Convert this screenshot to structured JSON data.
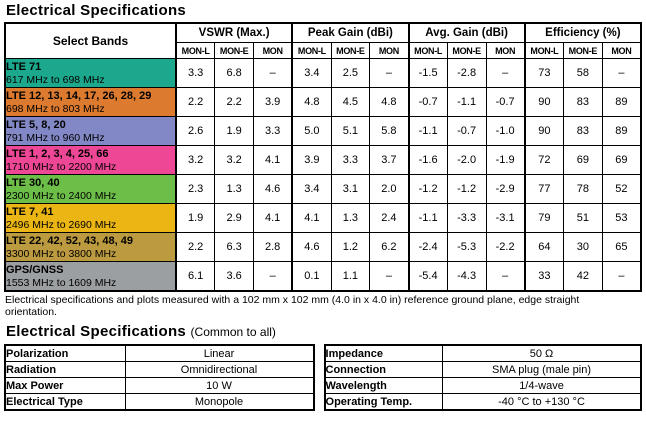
{
  "page": {
    "title": "Electrical Specifications",
    "note": "Electrical specifications and plots measured with a 102 mm x 102 mm (4.0 in x 4.0 in) reference ground plane, edge straight orientation.",
    "section2_title": "Electrical Specifications",
    "section2_suffix": "(Common to all)"
  },
  "main_table": {
    "select_bands_header": "Select Bands",
    "groups": [
      {
        "label": "VSWR (Max.)"
      },
      {
        "label": "Peak Gain (dBi)"
      },
      {
        "label": "Avg. Gain (dBi)"
      },
      {
        "label": "Efficiency (%)"
      }
    ],
    "subcols": [
      "MON-L",
      "MON-E",
      "MON"
    ],
    "rows": [
      {
        "band": "LTE 71",
        "range": "617 MHz to 698 MHz",
        "color": "#1CA88C",
        "values": [
          "3.3",
          "6.8",
          "–",
          "3.4",
          "2.5",
          "–",
          "-1.5",
          "-2.8",
          "–",
          "73",
          "58",
          "–"
        ]
      },
      {
        "band": "LTE 12, 13, 14, 17, 26, 28, 29",
        "range": "698 MHz to 803 MHz",
        "color": "#DC7B2F",
        "values": [
          "2.2",
          "2.2",
          "3.9",
          "4.8",
          "4.5",
          "4.8",
          "-0.7",
          "-1.1",
          "-0.7",
          "90",
          "83",
          "89"
        ]
      },
      {
        "band": "LTE 5, 8, 20",
        "range": "791 MHz to 960 MHz",
        "color": "#8288C5",
        "values": [
          "2.6",
          "1.9",
          "3.3",
          "5.0",
          "5.1",
          "5.8",
          "-1.1",
          "-0.7",
          "-1.0",
          "90",
          "83",
          "89"
        ]
      },
      {
        "band": "LTE 1, 2, 3, 4, 25, 66",
        "range": "1710 MHz to 2200 MHz",
        "color": "#EE4796",
        "values": [
          "3.2",
          "3.2",
          "4.1",
          "3.9",
          "3.3",
          "3.7",
          "-1.6",
          "-2.0",
          "-1.9",
          "72",
          "69",
          "69"
        ]
      },
      {
        "band": "LTE 30, 40",
        "range": "2300 MHz to 2400 MHz",
        "color": "#6CBE48",
        "values": [
          "2.3",
          "1.3",
          "4.6",
          "3.4",
          "3.1",
          "2.0",
          "-1.2",
          "-1.2",
          "-2.9",
          "77",
          "78",
          "52"
        ]
      },
      {
        "band": "LTE 7, 41",
        "range": "2496 MHz to 2690 MHz",
        "color": "#EBB614",
        "values": [
          "1.9",
          "2.9",
          "4.1",
          "4.1",
          "1.3",
          "2.4",
          "-1.1",
          "-3.3",
          "-3.1",
          "79",
          "51",
          "53"
        ]
      },
      {
        "band": "LTE 22, 42, 52, 43, 48, 49",
        "range": "3300 MHz to 3800 MHz",
        "color": "#BC9A40",
        "values": [
          "2.2",
          "6.3",
          "2.8",
          "4.6",
          "1.2",
          "6.2",
          "-2.4",
          "-5.3",
          "-2.2",
          "64",
          "30",
          "65"
        ]
      },
      {
        "band": "GPS/GNSS",
        "range": "1553 MHz to 1609 MHz",
        "color": "#9C9FA2",
        "values": [
          "6.1",
          "3.6",
          "–",
          "0.1",
          "1.1",
          "–",
          "-5.4",
          "-4.3",
          "–",
          "33",
          "42",
          "–"
        ]
      }
    ]
  },
  "common_tables": {
    "left": [
      [
        "Polarization",
        "Linear"
      ],
      [
        "Radiation",
        "Omnidirectional"
      ],
      [
        "Max Power",
        "10 W"
      ],
      [
        "Electrical Type",
        "Monopole"
      ]
    ],
    "right": [
      [
        "Impedance",
        "50 Ω"
      ],
      [
        "Connection",
        "SMA plug (male pin)"
      ],
      [
        "Wavelength",
        "1/4-wave"
      ],
      [
        "Operating Temp.",
        "-40 °C to +130 °C"
      ]
    ]
  }
}
